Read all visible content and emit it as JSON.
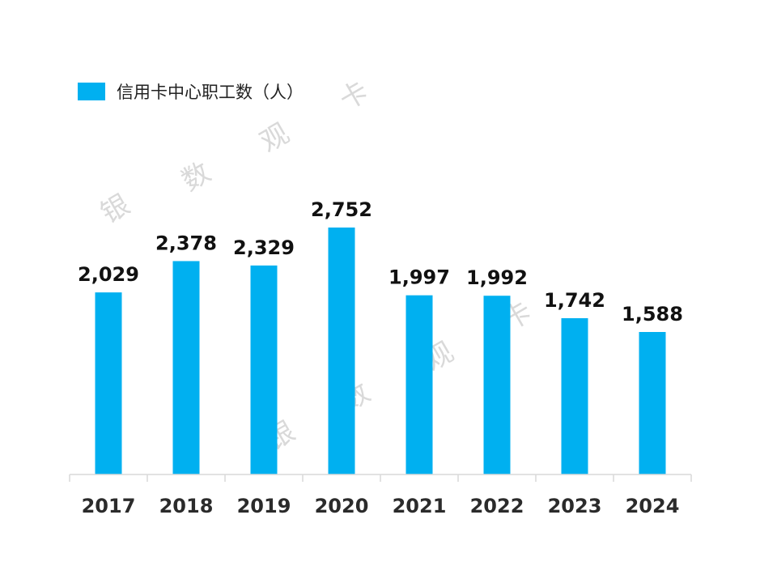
{
  "chart_data": {
    "type": "bar",
    "title": "",
    "xlabel": "",
    "ylabel": "",
    "categories": [
      "2017",
      "2018",
      "2019",
      "2020",
      "2021",
      "2022",
      "2023",
      "2024"
    ],
    "series": [
      {
        "name": "信用卡中心职工数（人）",
        "values": [
          2029,
          2378,
          2329,
          2752,
          1997,
          1992,
          1742,
          1588
        ],
        "color": "#00B0F0"
      }
    ],
    "data_labels": [
      "2,029",
      "2,378",
      "2,329",
      "2,752",
      "1,997",
      "1,992",
      "1,742",
      "1,588"
    ],
    "ylim": [
      0,
      2752
    ],
    "grid": false,
    "legend_position": "top-left",
    "watermark": "银 数 观 卡"
  }
}
